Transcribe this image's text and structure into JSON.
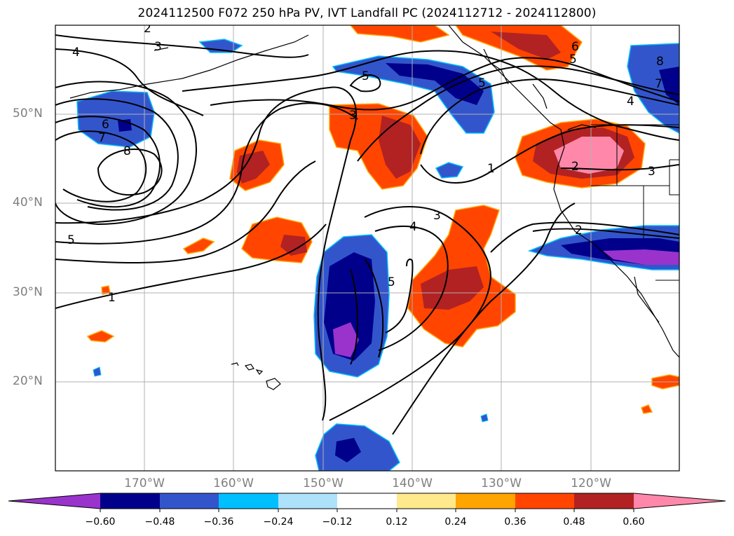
{
  "title": "2024112500 F072 250 hPa PV, IVT Landfall PC (2024112712 - 2024112800)",
  "lat_labels": [
    "50°N",
    "40°N",
    "30°N",
    "20°N"
  ],
  "lon_labels": [
    "170°W",
    "160°W",
    "150°W",
    "140°W",
    "130°W",
    "120°W"
  ],
  "contour_labels": [
    "2",
    "3",
    "4",
    "6",
    "7",
    "8",
    "5",
    "1",
    "5",
    "3",
    "5",
    "6",
    "5",
    "4",
    "8",
    "7",
    "4",
    "3",
    "1",
    "2",
    "3",
    "3",
    "4",
    "5",
    "2"
  ],
  "colorbar": {
    "tick_labels": [
      "−0.60",
      "−0.48",
      "−0.36",
      "−0.24",
      "−0.12",
      "0.12",
      "0.24",
      "0.36",
      "0.48",
      "0.60"
    ],
    "colors": [
      "#9933cc",
      "#00008b",
      "#3355cc",
      "#00bfff",
      "#aee2fa",
      "#ffffff",
      "#ffe98c",
      "#ffa500",
      "#ff4500",
      "#b22222",
      "#ff88aa"
    ]
  }
}
